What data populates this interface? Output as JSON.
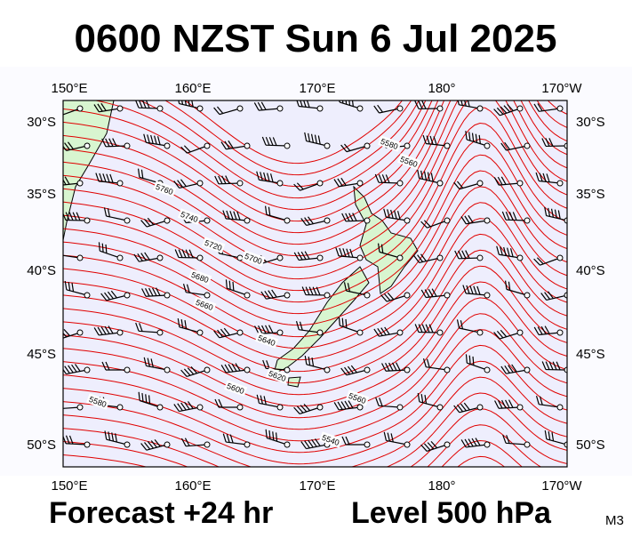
{
  "title": "0600 NZST Sun 6 Jul 2025",
  "map": {
    "lon_labels": [
      "150°E",
      "160°E",
      "170°E",
      "180°",
      "170°W"
    ],
    "lat_labels": [
      "30°S",
      "35°S",
      "40°S",
      "45°S",
      "50°S"
    ],
    "contour_labels": [
      "5760",
      "5740",
      "5720",
      "5700",
      "5680",
      "5660",
      "5640",
      "5620",
      "5600",
      "5580",
      "5560",
      "5540",
      "5580",
      "5560"
    ]
  },
  "footer": {
    "forecast": "Forecast +24 hr",
    "level": "Level 500 hPa",
    "code": "M3"
  }
}
